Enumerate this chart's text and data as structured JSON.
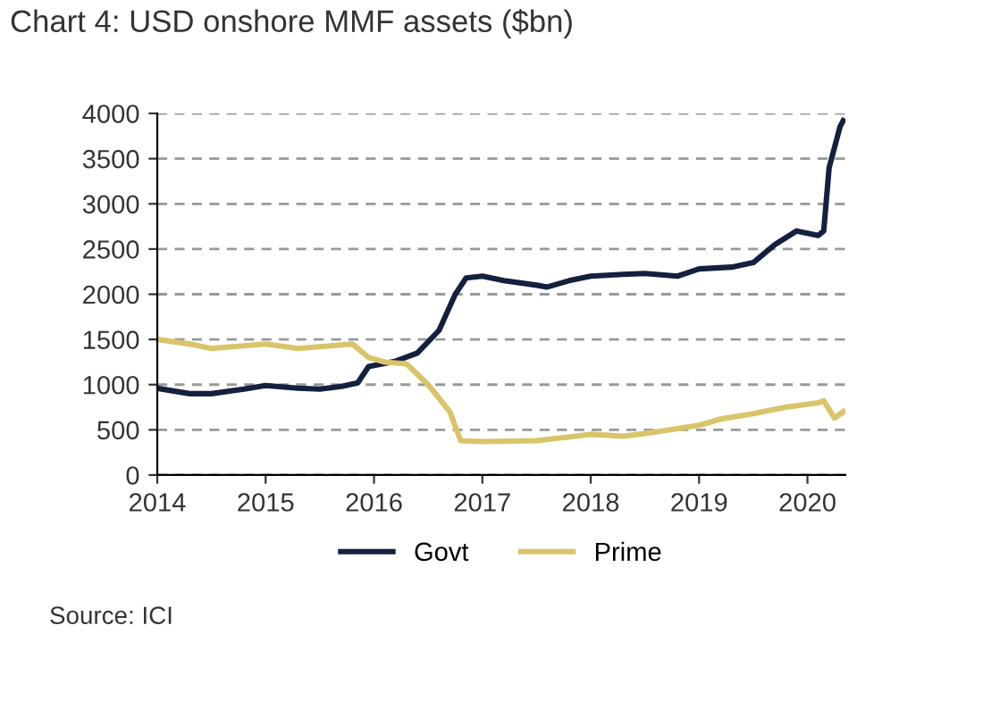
{
  "chart_data": {
    "type": "line",
    "title": "Chart 4: USD onshore MMF assets ($bn)",
    "annotations": [
      "Source: ICI"
    ],
    "xlim": [
      2014,
      2020.35
    ],
    "xticks": [
      2014,
      2015,
      2016,
      2017,
      2018,
      2019,
      2020
    ],
    "ylim": [
      0,
      4000
    ],
    "yticks": [
      0,
      500,
      1000,
      1500,
      2000,
      2500,
      3000,
      3500,
      4000
    ],
    "grid": "y",
    "legend": "bottom",
    "line_style": "solid",
    "marker": "none",
    "series": [
      {
        "name": "Govt",
        "color": "#13203f",
        "x": [
          2014,
          2014.3,
          2014.5,
          2014.8,
          2015,
          2015.3,
          2015.5,
          2015.7,
          2015.85,
          2015.95,
          2016.2,
          2016.4,
          2016.6,
          2016.75,
          2016.85,
          2017,
          2017.2,
          2017.5,
          2017.6,
          2017.8,
          2018,
          2018.3,
          2018.5,
          2018.8,
          2019,
          2019.3,
          2019.5,
          2019.7,
          2019.9,
          2020.1,
          2020.15,
          2020.2,
          2020.3,
          2020.33
        ],
        "values": [
          960,
          900,
          900,
          950,
          990,
          960,
          950,
          980,
          1020,
          1200,
          1260,
          1350,
          1600,
          2000,
          2180,
          2200,
          2150,
          2100,
          2080,
          2150,
          2200,
          2220,
          2230,
          2200,
          2280,
          2300,
          2350,
          2550,
          2700,
          2650,
          2700,
          3400,
          3850,
          3920
        ]
      },
      {
        "name": "Prime",
        "color": "#d9c46a",
        "x": [
          2014,
          2014.3,
          2014.5,
          2015,
          2015.3,
          2015.5,
          2015.8,
          2015.95,
          2016.1,
          2016.3,
          2016.5,
          2016.7,
          2016.8,
          2017,
          2017.5,
          2018,
          2018.3,
          2018.5,
          2019,
          2019.2,
          2019.5,
          2019.8,
          2020.1,
          2020.15,
          2020.25,
          2020.33
        ],
        "values": [
          1500,
          1450,
          1400,
          1450,
          1400,
          1420,
          1450,
          1300,
          1250,
          1230,
          1000,
          700,
          380,
          370,
          380,
          450,
          430,
          460,
          550,
          620,
          680,
          750,
          800,
          820,
          630,
          700
        ]
      }
    ]
  }
}
